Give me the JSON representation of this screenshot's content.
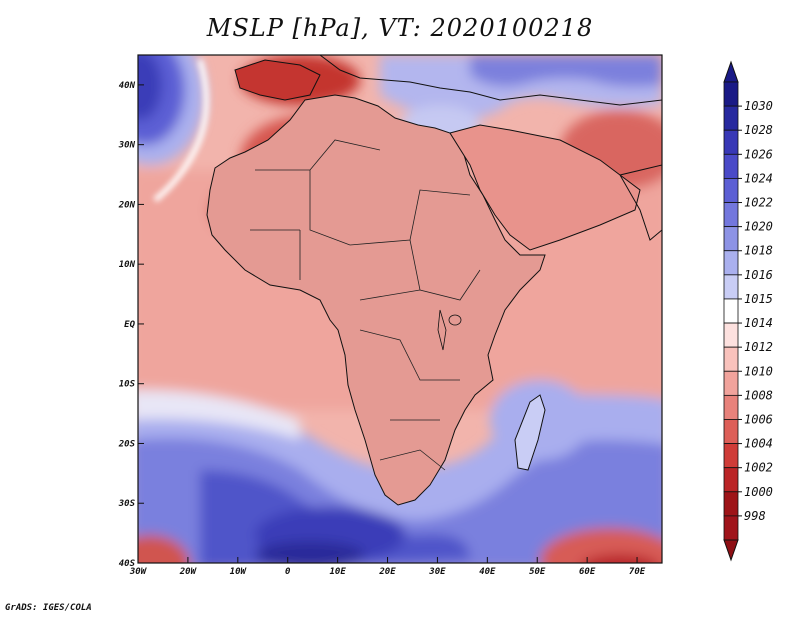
{
  "title": "MSLP [hPa], VT: 2020100218",
  "credit": "GrADS: IGES/COLA",
  "variable": "Mean sea level pressure",
  "units": "hPa",
  "valid_time": "2020100218",
  "axes": {
    "x_ticks": [
      "30W",
      "20W",
      "10W",
      "0",
      "10E",
      "20E",
      "30E",
      "40E",
      "50E",
      "60E",
      "70E"
    ],
    "y_ticks": [
      "40N",
      "30N",
      "20N",
      "10N",
      "EQ",
      "10S",
      "20S",
      "30S",
      "40S"
    ],
    "lon_range": [
      -30,
      75
    ],
    "lat_range": [
      -40,
      45
    ]
  },
  "colorbar": {
    "labels": [
      "1030",
      "1028",
      "1026",
      "1024",
      "1022",
      "1020",
      "1018",
      "1016",
      "1015",
      "1014",
      "1012",
      "1010",
      "1008",
      "1006",
      "1004",
      "1002",
      "1000",
      "998"
    ],
    "colors": [
      "#1a1a86",
      "#27299f",
      "#3838b6",
      "#4a4ac8",
      "#5c5fd4",
      "#7377dd",
      "#8d93e5",
      "#aab0ee",
      "#c9cdf5",
      "#ffffff",
      "#fde1df",
      "#f9c2bc",
      "#f1a39c",
      "#e8827b",
      "#dd5f58",
      "#cf3c38",
      "#bb2426",
      "#9e1418"
    ]
  },
  "map_regions": {
    "sea_color": "#f2bcb4",
    "land_color": "#dd8a84",
    "high_color": "#3c40c4",
    "low_color": "#c2302b"
  }
}
